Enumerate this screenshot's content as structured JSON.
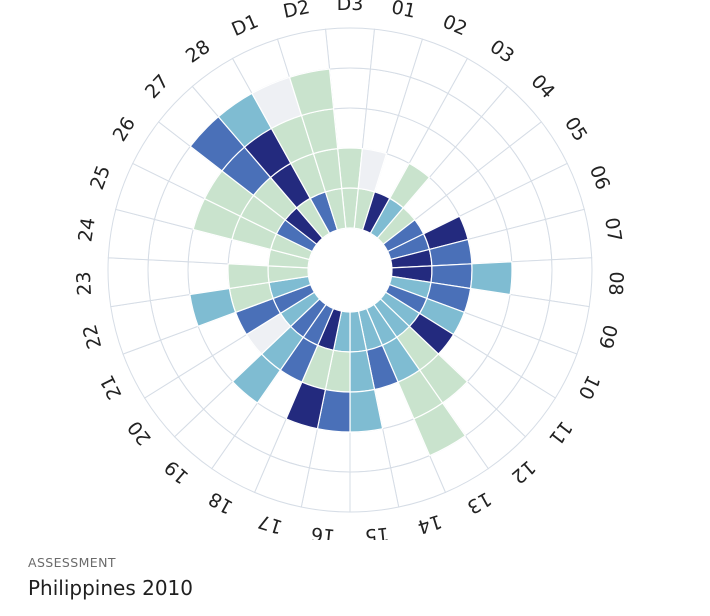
{
  "caption": {
    "eyebrow": "ASSESSMENT",
    "title": "Philippines 2010"
  },
  "colors": {
    "level_0": "#eef0f4",
    "level_1": "#c9e3cd",
    "level_2": "#7fbcd2",
    "level_3": "#4a70b8",
    "level_4": "#232a7e",
    "grid": "#d6dde6",
    "label": "#222222"
  },
  "chart_data": {
    "type": "radial-bar",
    "max_level": 5,
    "categories": [
      "D3",
      "01",
      "02",
      "03",
      "04",
      "05",
      "06",
      "07",
      "08",
      "09",
      "10",
      "11",
      "12",
      "13",
      "14",
      "15",
      "16",
      "17",
      "18",
      "19",
      "20",
      "21",
      "22",
      "23",
      "24",
      "25",
      "26",
      "27",
      "28",
      "D1",
      "D2"
    ],
    "segments": [
      [
        1,
        1
      ],
      [
        1,
        0
      ],
      [
        4
      ],
      [
        2,
        1
      ],
      [
        1
      ],
      [
        3
      ],
      [
        3,
        4
      ],
      [
        4,
        3
      ],
      [
        4,
        3,
        2
      ],
      [
        2,
        3
      ],
      [
        3,
        2
      ],
      [
        2,
        4
      ],
      [
        2,
        1,
        1
      ],
      [
        2,
        2,
        1,
        1
      ],
      [
        2,
        3
      ],
      [
        2,
        2,
        2
      ],
      [
        2,
        1,
        3
      ],
      [
        4,
        1,
        4
      ],
      [
        3,
        3
      ],
      [
        3,
        2,
        2
      ],
      [
        2,
        0
      ],
      [
        3,
        3
      ],
      [
        2,
        1,
        2
      ],
      [
        1,
        1
      ],
      [
        1
      ],
      [
        1,
        1,
        1
      ],
      [
        3,
        1,
        1
      ],
      [
        4,
        1,
        3,
        3
      ],
      [
        1,
        4,
        4,
        2
      ],
      [
        3,
        1,
        1,
        0
      ],
      [
        1,
        1,
        1,
        1
      ]
    ]
  }
}
